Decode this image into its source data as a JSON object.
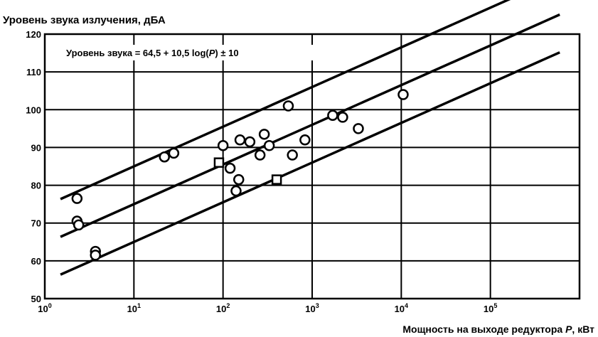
{
  "chart_data": {
    "type": "scatter",
    "title": "",
    "ylabel": "Уровень звука излучения, дБА",
    "xlabel_prefix": "Мощность на выходе редуктора ",
    "xlabel_var": "P",
    "xlabel_suffix": ", кВт",
    "annotation": {
      "prefix": "Уровень звука = 64,5 + 10,5 log(",
      "var": "P",
      "suffix": ") ± 10"
    },
    "x_scale": "log",
    "xlim": [
      1,
      1000000
    ],
    "ylim": [
      50,
      120
    ],
    "grid": true,
    "x_ticks": [
      {
        "base": "10",
        "exp": "0",
        "value": 1
      },
      {
        "base": "10",
        "exp": "1",
        "value": 10
      },
      {
        "base": "10",
        "exp": "2",
        "value": 100
      },
      {
        "base": "10",
        "exp": "3",
        "value": 1000
      },
      {
        "base": "10",
        "exp": "4",
        "value": 10000
      },
      {
        "base": "10",
        "exp": "5",
        "value": 100000
      }
    ],
    "y_ticks": [
      "50",
      "60",
      "70",
      "80",
      "90",
      "100",
      "110",
      "120"
    ],
    "lines": [
      {
        "role": "upper",
        "intercept": 74.5,
        "slope": 10.5,
        "x_range": [
          1.5,
          400000
        ]
      },
      {
        "role": "center",
        "intercept": 64.5,
        "slope": 10.5,
        "x_range": [
          1.5,
          600000
        ]
      },
      {
        "role": "lower",
        "intercept": 54.5,
        "slope": 10.5,
        "x_range": [
          1.5,
          600000
        ]
      }
    ],
    "points_circle": [
      {
        "x": 2.3,
        "y": 76.5
      },
      {
        "x": 2.3,
        "y": 70.5
      },
      {
        "x": 2.4,
        "y": 69.5
      },
      {
        "x": 3.7,
        "y": 62.5
      },
      {
        "x": 3.7,
        "y": 61.5
      },
      {
        "x": 22,
        "y": 87.5
      },
      {
        "x": 28,
        "y": 88.5
      },
      {
        "x": 100,
        "y": 90.5
      },
      {
        "x": 120,
        "y": 84.5
      },
      {
        "x": 140,
        "y": 78.5
      },
      {
        "x": 150,
        "y": 81.5
      },
      {
        "x": 155,
        "y": 92
      },
      {
        "x": 200,
        "y": 91.5
      },
      {
        "x": 260,
        "y": 88
      },
      {
        "x": 290,
        "y": 93.5
      },
      {
        "x": 330,
        "y": 90.5
      },
      {
        "x": 540,
        "y": 101
      },
      {
        "x": 600,
        "y": 88
      },
      {
        "x": 830,
        "y": 92
      },
      {
        "x": 1700,
        "y": 98.5
      },
      {
        "x": 2200,
        "y": 98
      },
      {
        "x": 3300,
        "y": 95
      },
      {
        "x": 10500,
        "y": 104
      }
    ],
    "points_square": [
      {
        "x": 90,
        "y": 86
      },
      {
        "x": 400,
        "y": 81.5
      }
    ]
  }
}
